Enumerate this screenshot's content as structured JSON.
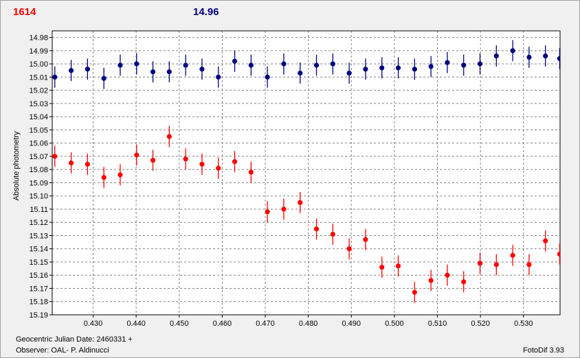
{
  "header": {
    "comparison_magnitude_label": "1614",
    "check_magnitude_label": "14.96"
  },
  "footer": {
    "date_label": "Geocentric Julian Date: 2460331 +",
    "observer_label": "Observer: OAL- P. Aldinucci",
    "software_label": "FotoDif 3.93"
  },
  "colors": {
    "series_red": "#ff0000",
    "series_blue": "#00007f",
    "grid": "#808080",
    "plot_bg": "#ffffff"
  },
  "chart_data": {
    "type": "scatter",
    "title": "",
    "xlabel": "",
    "ylabel": "Absolute photometry",
    "xlim": [
      0.4205,
      0.5385
    ],
    "ylim": [
      15.19,
      14.975
    ],
    "y_inverted": true,
    "grid": true,
    "x_ticks": [
      "0.430",
      "0.440",
      "0.450",
      "0.460",
      "0.470",
      "0.480",
      "0.490",
      "0.500",
      "0.510",
      "0.520",
      "0.530"
    ],
    "x_tick_values": [
      0.43,
      0.44,
      0.45,
      0.46,
      0.47,
      0.48,
      0.49,
      0.5,
      0.51,
      0.52,
      0.53
    ],
    "y_ticks": [
      "14.98",
      "14.99",
      "15.00",
      "15.01",
      "15.02",
      "15.03",
      "15.04",
      "15.05",
      "15.06",
      "15.07",
      "15.08",
      "15.09",
      "15.10",
      "15.11",
      "15.12",
      "15.13",
      "15.14",
      "15.15",
      "15.16",
      "15.17",
      "15.18",
      "15.19"
    ],
    "y_tick_values": [
      14.98,
      14.99,
      15.0,
      15.01,
      15.02,
      15.03,
      15.04,
      15.05,
      15.06,
      15.07,
      15.08,
      15.09,
      15.1,
      15.11,
      15.12,
      15.13,
      15.14,
      15.15,
      15.16,
      15.17,
      15.18,
      15.19
    ],
    "series": [
      {
        "color": "#ff0000",
        "error": 0.008,
        "points": [
          [
            0.4211,
            15.07
          ],
          [
            0.4249,
            15.075
          ],
          [
            0.4287,
            15.076
          ],
          [
            0.4325,
            15.086
          ],
          [
            0.4363,
            15.084
          ],
          [
            0.4401,
            15.069
          ],
          [
            0.4439,
            15.073
          ],
          [
            0.4477,
            15.055
          ],
          [
            0.4515,
            15.072
          ],
          [
            0.4553,
            15.076
          ],
          [
            0.4591,
            15.079
          ],
          [
            0.4629,
            15.074
          ],
          [
            0.4667,
            15.082
          ],
          [
            0.4705,
            15.112
          ],
          [
            0.4743,
            15.11
          ],
          [
            0.4781,
            15.105
          ],
          [
            0.4819,
            15.125
          ],
          [
            0.4857,
            15.129
          ],
          [
            0.4895,
            15.14
          ],
          [
            0.4933,
            15.133
          ],
          [
            0.4971,
            15.154
          ],
          [
            0.5009,
            15.153
          ],
          [
            0.5047,
            15.173
          ],
          [
            0.5085,
            15.164
          ],
          [
            0.5123,
            15.16
          ],
          [
            0.5161,
            15.165
          ],
          [
            0.5199,
            15.151
          ],
          [
            0.5237,
            15.152
          ],
          [
            0.5275,
            15.145
          ],
          [
            0.5313,
            15.152
          ],
          [
            0.5351,
            15.134
          ],
          [
            0.5384,
            15.144
          ]
        ]
      },
      {
        "color": "#00007f",
        "error": 0.008,
        "points": [
          [
            0.4211,
            15.01
          ],
          [
            0.4249,
            15.005
          ],
          [
            0.4287,
            15.004
          ],
          [
            0.4325,
            15.011
          ],
          [
            0.4363,
            15.001
          ],
          [
            0.4401,
            15.0
          ],
          [
            0.4439,
            15.006
          ],
          [
            0.4477,
            15.006
          ],
          [
            0.4515,
            15.001
          ],
          [
            0.4553,
            15.004
          ],
          [
            0.4591,
            15.01
          ],
          [
            0.4629,
            14.998
          ],
          [
            0.4667,
            15.001
          ],
          [
            0.4705,
            15.01
          ],
          [
            0.4743,
            15.0
          ],
          [
            0.4781,
            15.007
          ],
          [
            0.4819,
            15.001
          ],
          [
            0.4857,
            15.0
          ],
          [
            0.4895,
            15.007
          ],
          [
            0.4933,
            15.004
          ],
          [
            0.4971,
            15.003
          ],
          [
            0.5009,
            15.003
          ],
          [
            0.5047,
            15.004
          ],
          [
            0.5085,
            15.002
          ],
          [
            0.5123,
            14.999
          ],
          [
            0.5161,
            15.001
          ],
          [
            0.5199,
            15.0
          ],
          [
            0.5237,
            14.994
          ],
          [
            0.5275,
            14.99
          ],
          [
            0.5313,
            14.995
          ],
          [
            0.5351,
            14.994
          ],
          [
            0.5384,
            14.996
          ]
        ]
      }
    ]
  }
}
